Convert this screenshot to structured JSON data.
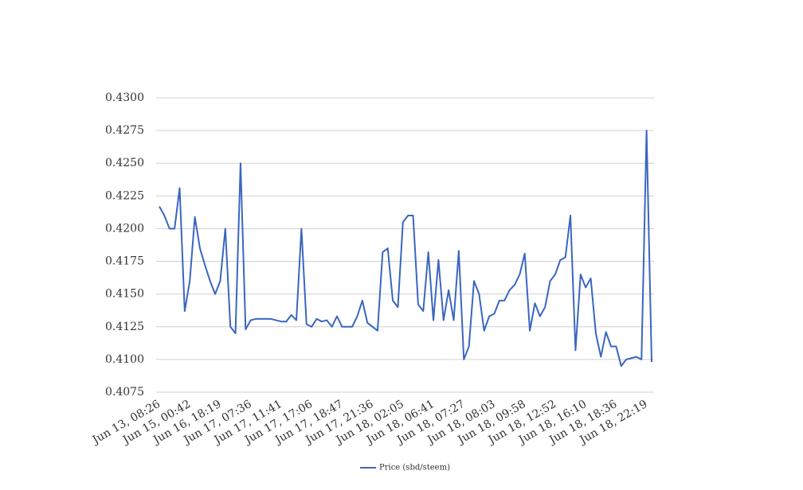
{
  "chart_data": {
    "type": "line",
    "categories": [
      "Jun 13, 08:26",
      null,
      null,
      null,
      null,
      null,
      "Jun 15, 00:42",
      null,
      null,
      null,
      null,
      null,
      "Jun 16, 18:19",
      null,
      null,
      null,
      null,
      null,
      "Jun 17, 07:36",
      null,
      null,
      null,
      null,
      null,
      "Jun 17, 11:41",
      null,
      null,
      null,
      null,
      null,
      "Jun 17, 17:06",
      null,
      null,
      null,
      null,
      null,
      "Jun 17, 18:47",
      null,
      null,
      null,
      null,
      null,
      "Jun 17, 21:36",
      null,
      null,
      null,
      null,
      null,
      "Jun 18, 02:05",
      null,
      null,
      null,
      null,
      null,
      "Jun 18, 06:41",
      null,
      null,
      null,
      null,
      null,
      "Jun 18, 07:27",
      null,
      null,
      null,
      null,
      null,
      "Jun 18, 08:03",
      null,
      null,
      null,
      null,
      null,
      "Jun 18, 09:58",
      null,
      null,
      null,
      null,
      null,
      "Jun 18, 12:52",
      null,
      null,
      null,
      null,
      null,
      "Jun 18, 16:10",
      null,
      null,
      null,
      null,
      null,
      "Jun 18, 18:36",
      null,
      null,
      null,
      null,
      null,
      "Jun 18, 22:19",
      null
    ],
    "series": [
      {
        "name": "Price (sbd/steem)",
        "color": "#3a66c0",
        "values": [
          0.4217,
          0.421,
          0.42,
          0.42,
          0.4231,
          0.4137,
          0.416,
          0.4209,
          0.4185,
          0.4172,
          0.416,
          0.415,
          0.416,
          0.42,
          0.4125,
          0.412,
          0.425,
          0.4123,
          0.413,
          0.4131,
          0.4131,
          0.4131,
          0.4131,
          0.413,
          0.4129,
          0.4129,
          0.4134,
          0.413,
          0.42,
          0.4127,
          0.4125,
          0.4131,
          0.4129,
          0.413,
          0.4125,
          0.4133,
          0.4125,
          0.4125,
          0.4125,
          0.4133,
          0.4145,
          0.4128,
          0.4125,
          0.4122,
          0.4182,
          0.4185,
          0.4145,
          0.414,
          0.4205,
          0.421,
          0.421,
          0.4142,
          0.4137,
          0.4182,
          0.413,
          0.4176,
          0.413,
          0.4153,
          0.413,
          0.4183,
          0.41,
          0.411,
          0.416,
          0.415,
          0.4122,
          0.4133,
          0.4135,
          0.4145,
          0.4145,
          0.4153,
          0.4157,
          0.4165,
          0.4181,
          0.4122,
          0.4143,
          0.4133,
          0.414,
          0.416,
          0.4165,
          0.4176,
          0.4178,
          0.421,
          0.4107,
          0.4165,
          0.4155,
          0.4162,
          0.412,
          0.4102,
          0.4121,
          0.411,
          0.411,
          0.4095,
          0.41,
          0.4101,
          0.4102,
          0.41,
          0.4275,
          0.4098
        ]
      }
    ],
    "ylim": [
      0.4075,
      0.43
    ],
    "yticks": [
      {
        "value": 0.4075,
        "label": "0.4075"
      },
      {
        "value": 0.41,
        "label": "0.4100"
      },
      {
        "value": 0.4125,
        "label": "0.4125"
      },
      {
        "value": 0.415,
        "label": "0.4150"
      },
      {
        "value": 0.4175,
        "label": "0.4175"
      },
      {
        "value": 0.42,
        "label": "0.4200"
      },
      {
        "value": 0.4225,
        "label": "0.4225"
      },
      {
        "value": 0.425,
        "label": "0.4250"
      },
      {
        "value": 0.4275,
        "label": "0.4275"
      },
      {
        "value": 0.43,
        "label": "0.4300"
      }
    ],
    "grid": true,
    "legend": "bottom"
  }
}
